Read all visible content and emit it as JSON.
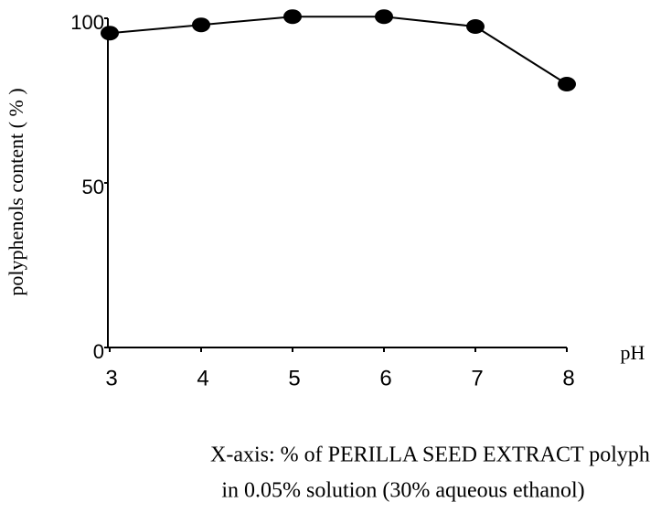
{
  "chart_data": {
    "type": "line",
    "x": [
      3,
      4,
      5,
      6,
      7,
      8
    ],
    "series": [
      {
        "name": "polyphenols content",
        "color": "#000000",
        "values": [
          95.5,
          98,
          100.5,
          100.5,
          97.5,
          80
        ]
      }
    ],
    "xlim": [
      3,
      8
    ],
    "xticks": [
      3,
      4,
      5,
      6,
      7,
      8
    ],
    "ylim": [
      0,
      100
    ],
    "yticks": [
      0,
      50,
      100
    ],
    "xlabel": "pH",
    "ylabel": "polyphenols content ( % )",
    "caption": [
      "X-axis: % of PERILLA SEED EXTRACT polyphenols",
      "in 0.05% solution (30% aqueous ethanol)"
    ]
  }
}
